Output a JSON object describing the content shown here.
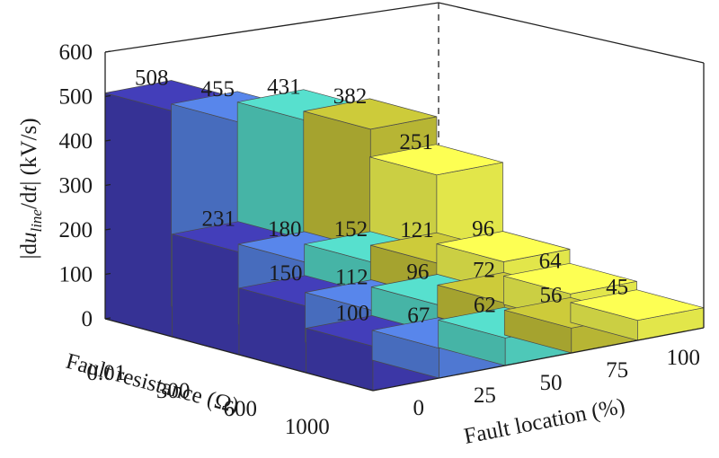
{
  "chart_data": {
    "type": "bar3d",
    "title": "",
    "ylabel": "Fault resistance (Ω)",
    "xlabel": "Fault location (%)",
    "zlabel_parts": [
      "|d",
      "u",
      "line",
      "/d",
      "t",
      "| (kV/s)"
    ],
    "fault_resistance": [
      "0.01",
      "300",
      "600",
      "1000"
    ],
    "fault_location": [
      "0",
      "25",
      "50",
      "75",
      "100"
    ],
    "zlim": [
      0,
      600
    ],
    "z_ticks": [
      "0",
      "100",
      "200",
      "300",
      "400",
      "500",
      "600"
    ],
    "values": [
      [
        508,
        455,
        431,
        382,
        251
      ],
      [
        231,
        180,
        152,
        121,
        96
      ],
      [
        150,
        112,
        96,
        72,
        64
      ],
      [
        100,
        67,
        62,
        56,
        45
      ]
    ],
    "colors": [
      "#3c37a6",
      "#4f78d2",
      "#4ec8b8",
      "#b7b534",
      "#e2e64a"
    ]
  }
}
